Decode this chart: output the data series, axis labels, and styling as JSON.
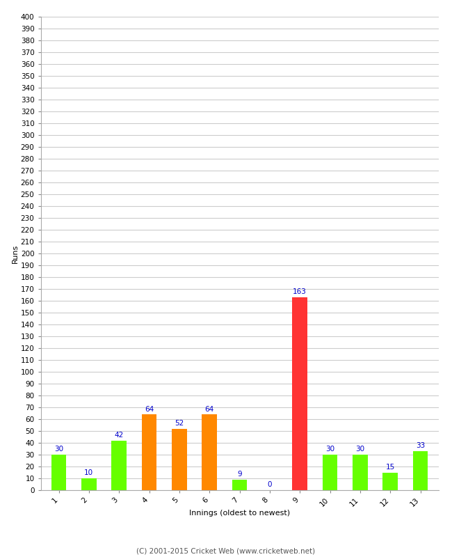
{
  "innings": [
    1,
    2,
    3,
    4,
    5,
    6,
    7,
    8,
    9,
    10,
    11,
    12,
    13
  ],
  "values": [
    30,
    10,
    42,
    64,
    52,
    64,
    9,
    0,
    163,
    30,
    30,
    15,
    33
  ],
  "colors": [
    "#66ff00",
    "#66ff00",
    "#66ff00",
    "#ff8800",
    "#ff8800",
    "#ff8800",
    "#66ff00",
    "#66ff00",
    "#ff3333",
    "#66ff00",
    "#66ff00",
    "#66ff00",
    "#66ff00"
  ],
  "xlabel": "Innings (oldest to newest)",
  "ylabel": "Runs",
  "ylim": [
    0,
    400
  ],
  "ytick_step": 10,
  "bar_label_color": "#0000cc",
  "bar_label_fontsize": 7.5,
  "xlabel_fontsize": 8,
  "ylabel_fontsize": 8,
  "tick_fontsize": 7.5,
  "footer": "(C) 2001-2015 Cricket Web (www.cricketweb.net)",
  "footer_fontsize": 7.5,
  "background_color": "#ffffff",
  "grid_color": "#cccccc",
  "bar_width": 0.5
}
